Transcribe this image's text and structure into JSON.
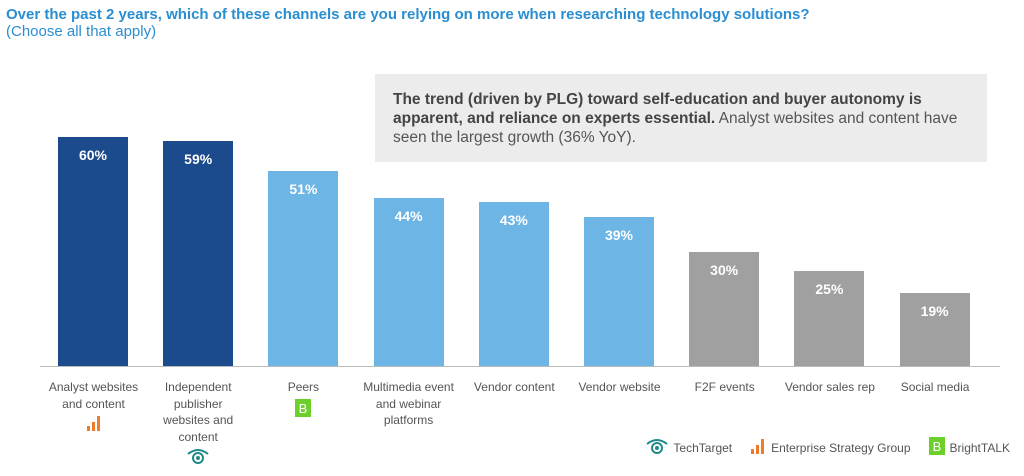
{
  "chart_data": {
    "type": "bar",
    "title": "Over the past 2 years, which of these channels are you relying on more when researching technology solutions?",
    "subtitle": "(Choose all that apply)",
    "categories": [
      "Analyst websites and content",
      "Independent publisher websites and content",
      "Peers",
      "Multimedia event and webinar platforms",
      "Vendor content",
      "Vendor website",
      "F2F events",
      "Vendor sales rep",
      "Social media"
    ],
    "values": [
      60,
      59,
      51,
      44,
      43,
      39,
      30,
      25,
      19
    ],
    "value_labels": [
      "60%",
      "59%",
      "51%",
      "44%",
      "43%",
      "39%",
      "30%",
      "25%",
      "19%"
    ],
    "bar_colors": [
      "#1b4a8d",
      "#1b4a8d",
      "#6db5e5",
      "#6db5e5",
      "#6db5e5",
      "#6db5e5",
      "#a0a0a0",
      "#a0a0a0",
      "#a0a0a0"
    ],
    "category_icons": [
      "esg-icon",
      "techtarget-icon",
      "brighttalk-icon",
      "",
      "",
      "",
      "",
      "",
      ""
    ],
    "ylim": [
      0,
      60
    ],
    "grid": false
  },
  "callout": {
    "bold": "The trend (driven by PLG) toward self-education and buyer autonomy is apparent, and reliance on experts essential.",
    "text": " Analyst websites and content have seen the largest growth (36% YoY)."
  },
  "legend": [
    {
      "name": "TechTarget",
      "icon": "techtarget-icon"
    },
    {
      "name": "Enterprise Strategy Group",
      "icon": "esg-icon"
    },
    {
      "name": "BrightTALK",
      "icon": "brighttalk-icon"
    }
  ],
  "colors": {
    "title": "#2a8ed0",
    "techtarget": "#1f8a8a",
    "esg": "#f07a2a",
    "brighttalk": "#6ccf2a"
  }
}
